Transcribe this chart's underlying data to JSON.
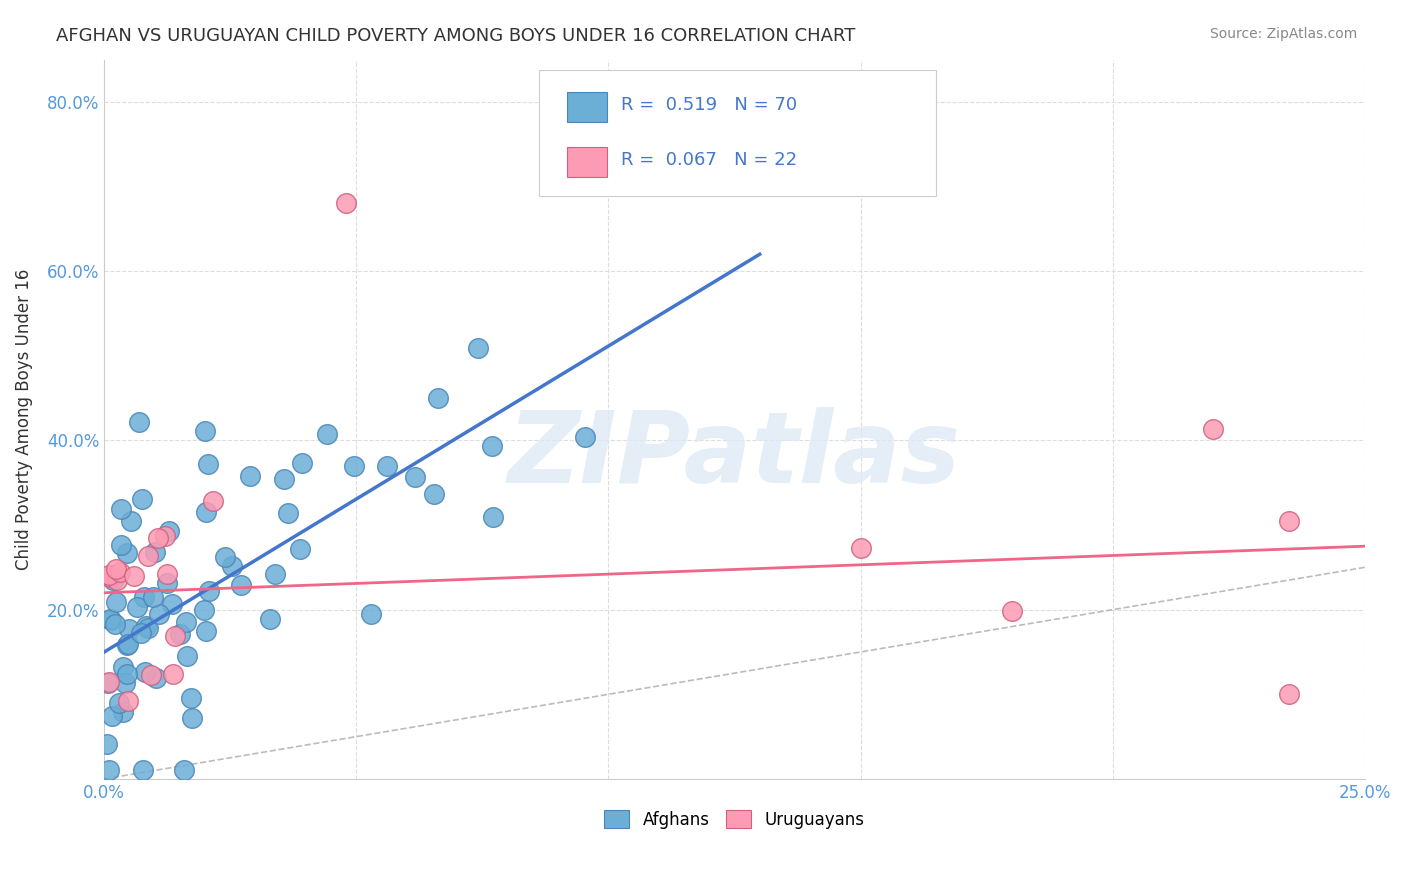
{
  "title": "AFGHAN VS URUGUAYAN CHILD POVERTY AMONG BOYS UNDER 16 CORRELATION CHART",
  "source": "Source: ZipAtlas.com",
  "ylabel": "Child Poverty Among Boys Under 16",
  "xlim": [
    0.0,
    0.25
  ],
  "ylim": [
    0.0,
    0.85
  ],
  "legend1_R": "0.519",
  "legend1_N": "70",
  "legend2_R": "0.067",
  "legend2_N": "22",
  "afghan_color": "#6baed6",
  "afghan_edge": "#4a86b8",
  "uruguayan_color": "#fc9bb3",
  "uruguayan_edge": "#d06080",
  "trend_afghan_color": "#4477cc",
  "trend_uruguayan_color": "#ee6688",
  "diagonal_color": "#bbbbbb",
  "watermark": "ZIPatlas",
  "background_color": "#ffffff",
  "grid_color": "#dddddd",
  "tick_color": "#5599dd"
}
